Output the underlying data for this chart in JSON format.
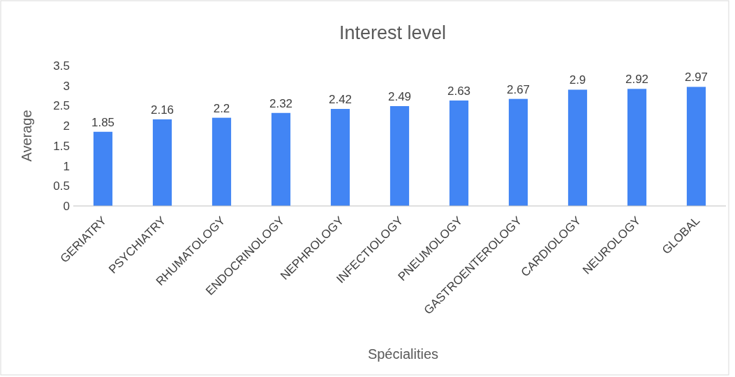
{
  "chart_data": {
    "type": "bar",
    "title": "Interest level",
    "xlabel": "Spécialities",
    "ylabel": "Average",
    "categories": [
      "GERIATRY",
      "PSYCHIATRY",
      "RHUMATOLOGY",
      "ENDOCRINOLOGY",
      "NEPHROLOGY",
      "INFECTIOLOGY",
      "PNEUMOLOGY",
      "GASTROENTEROLOGY",
      "CARDIOLOGY",
      "NEUROLOGY",
      "GLOBAL"
    ],
    "values": [
      1.85,
      2.16,
      2.2,
      2.32,
      2.42,
      2.49,
      2.63,
      2.67,
      2.9,
      2.92,
      2.97
    ],
    "color": "#4285f4",
    "ylim": [
      0,
      3.5
    ],
    "yticks": [
      0,
      0.5,
      1,
      1.5,
      2,
      2.5,
      3,
      3.5
    ],
    "data_labels": true,
    "grid": false
  }
}
